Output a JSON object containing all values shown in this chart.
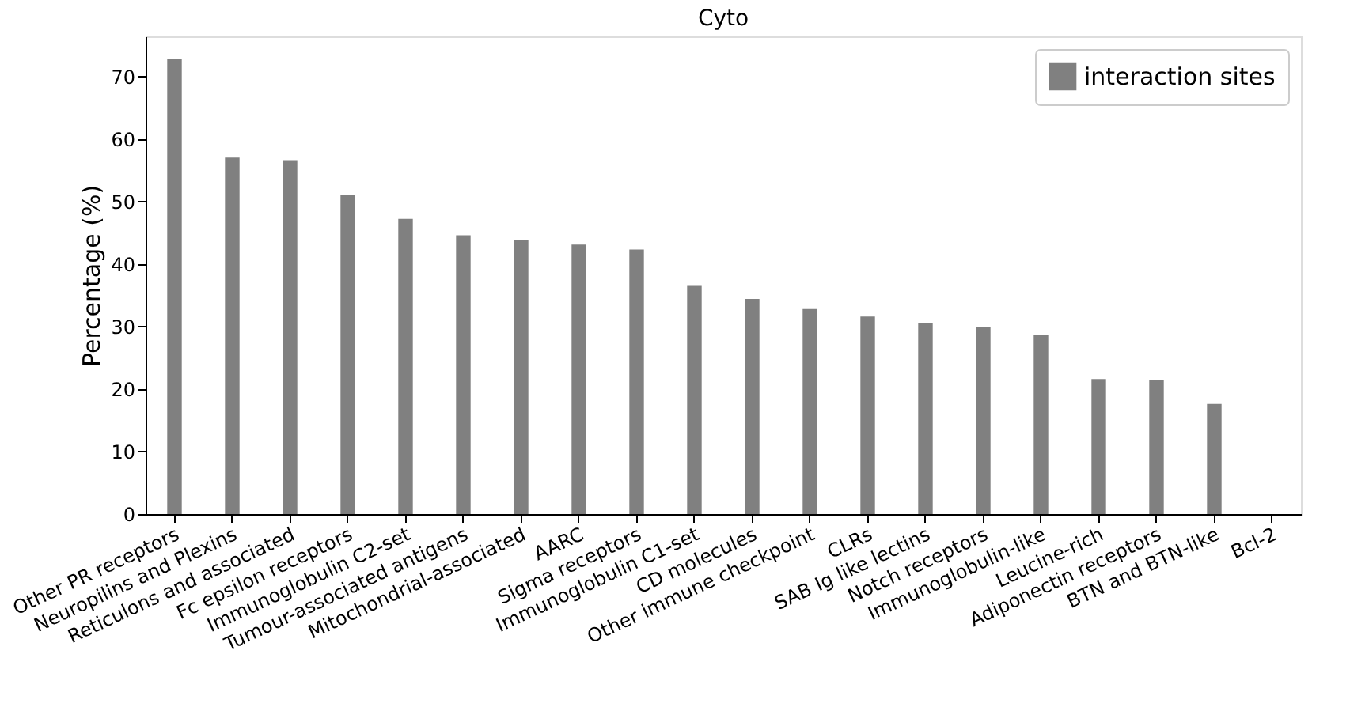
{
  "chart_data": {
    "type": "bar",
    "title": "Cyto",
    "ylabel": "Percentage (%)",
    "categories": [
      "Other PR receptors",
      "Neuropilins and Plexins",
      "Reticulons and associated",
      "Fc epsilon receptors",
      "Immunoglobulin C2-set",
      "Tumour-associated antigens",
      "Mitochondrial-associated",
      "AARC",
      "Sigma receptors",
      "Immunoglobulin C1-set",
      "CD molecules",
      "Other immune checkpoint",
      "CLRs",
      "SAB Ig like lectins",
      "Notch receptors",
      "Immunoglobulin-like",
      "Leucine-rich",
      "Adiponectin receptors",
      "BTN and BTN-like",
      "Bcl-2"
    ],
    "series": [
      {
        "name": "interaction sites",
        "color": "#808080",
        "values": [
          72.8,
          57.0,
          56.6,
          51.1,
          47.2,
          44.6,
          43.8,
          43.1,
          42.3,
          36.5,
          34.4,
          32.8,
          31.6,
          30.6,
          29.9,
          28.7,
          21.6,
          21.4,
          17.6,
          null
        ]
      }
    ],
    "ylim": [
      0,
      76.4
    ],
    "yticks": [
      0,
      10,
      20,
      30,
      40,
      50,
      60,
      70
    ],
    "grid": false,
    "legend": "top right"
  }
}
